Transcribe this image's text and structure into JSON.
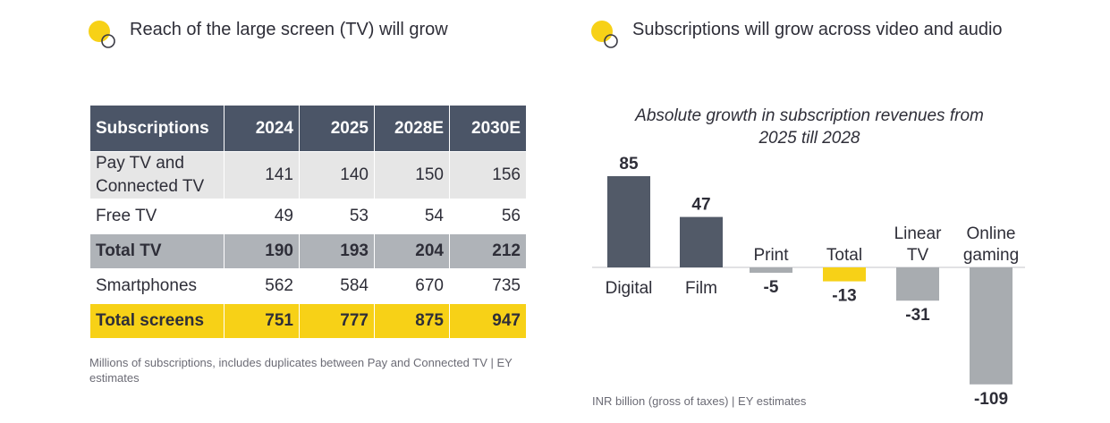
{
  "left": {
    "title": "Reach of the large screen (TV) will grow",
    "table": {
      "headers": [
        "Subscriptions",
        "2024",
        "2025",
        "2028E",
        "2030E"
      ],
      "rows": [
        {
          "label": "Pay TV and Connected TV",
          "values": [
            "141",
            "140",
            "150",
            "156"
          ],
          "style": "grey"
        },
        {
          "label": "Free TV",
          "values": [
            "49",
            "53",
            "54",
            "56"
          ],
          "style": "white"
        },
        {
          "label": "Total TV",
          "values": [
            "190",
            "193",
            "204",
            "212"
          ],
          "style": "total"
        },
        {
          "label": "Smartphones",
          "values": [
            "562",
            "584",
            "670",
            "735"
          ],
          "style": "white"
        },
        {
          "label": "Total screens",
          "values": [
            "751",
            "777",
            "875",
            "947"
          ],
          "style": "total-screens"
        }
      ]
    },
    "footnote": "Millions of subscriptions, includes duplicates between Pay and Connected TV | EY estimates"
  },
  "right": {
    "title": "Subscriptions will grow across video and audio",
    "footnote": "INR billion (gross of taxes) | EY estimates"
  },
  "colors": {
    "dark_bar": "#525a68",
    "grey_bar": "#a8acb0",
    "yellow": "#f7d117",
    "header_bg": "#4b5567",
    "text": "#2e2e38"
  },
  "chart_data": {
    "type": "bar",
    "title": "Absolute growth in subscription revenues from 2025 till 2028",
    "categories": [
      "Digital",
      "Film",
      "Print",
      "Total",
      "Linear TV",
      "Online gaming"
    ],
    "values": [
      85,
      47,
      -5,
      -13,
      -31,
      -109
    ],
    "value_labels": [
      "85",
      "47",
      "-5",
      "-13",
      "-31",
      "-109"
    ],
    "bar_colors": [
      "dark",
      "dark",
      "grey",
      "yellow",
      "grey",
      "grey"
    ],
    "unit": "INR billion",
    "xlabel": "",
    "ylabel": "",
    "ylim": [
      -109,
      85
    ],
    "grid": false
  }
}
